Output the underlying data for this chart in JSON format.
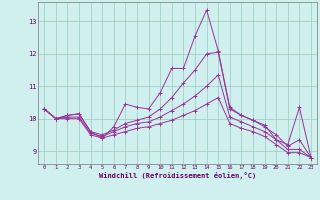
{
  "xlabel": "Windchill (Refroidissement éolien,°C)",
  "background_color": "#cff0ee",
  "grid_color": "#99ccbb",
  "line_color": "#993399",
  "axis_color": "#660066",
  "xlim": [
    -0.5,
    23.5
  ],
  "ylim": [
    8.6,
    13.6
  ],
  "yticks": [
    9,
    10,
    11,
    12,
    13
  ],
  "xticks": [
    0,
    1,
    2,
    3,
    4,
    5,
    6,
    7,
    8,
    9,
    10,
    11,
    12,
    13,
    14,
    15,
    16,
    17,
    18,
    19,
    20,
    21,
    22,
    23
  ],
  "series": [
    [
      10.3,
      10.0,
      10.1,
      10.15,
      9.6,
      9.4,
      9.75,
      10.45,
      10.35,
      10.3,
      10.8,
      11.55,
      11.55,
      12.55,
      13.35,
      12.1,
      10.35,
      10.1,
      9.95,
      9.8,
      9.35,
      9.2,
      10.35,
      8.8
    ],
    [
      10.3,
      10.0,
      10.1,
      10.15,
      9.6,
      9.5,
      9.65,
      9.85,
      9.95,
      10.05,
      10.3,
      10.65,
      11.1,
      11.5,
      12.0,
      12.05,
      10.3,
      10.1,
      9.95,
      9.75,
      9.5,
      9.15,
      9.35,
      8.8
    ],
    [
      10.3,
      10.0,
      10.05,
      10.05,
      9.55,
      9.45,
      9.6,
      9.75,
      9.85,
      9.9,
      10.05,
      10.25,
      10.45,
      10.7,
      11.0,
      11.35,
      10.05,
      9.9,
      9.75,
      9.6,
      9.35,
      9.05,
      9.05,
      8.8
    ],
    [
      10.3,
      10.0,
      10.0,
      10.0,
      9.5,
      9.4,
      9.5,
      9.6,
      9.7,
      9.75,
      9.85,
      9.95,
      10.1,
      10.25,
      10.45,
      10.65,
      9.85,
      9.7,
      9.6,
      9.45,
      9.2,
      8.95,
      8.95,
      8.8
    ]
  ]
}
